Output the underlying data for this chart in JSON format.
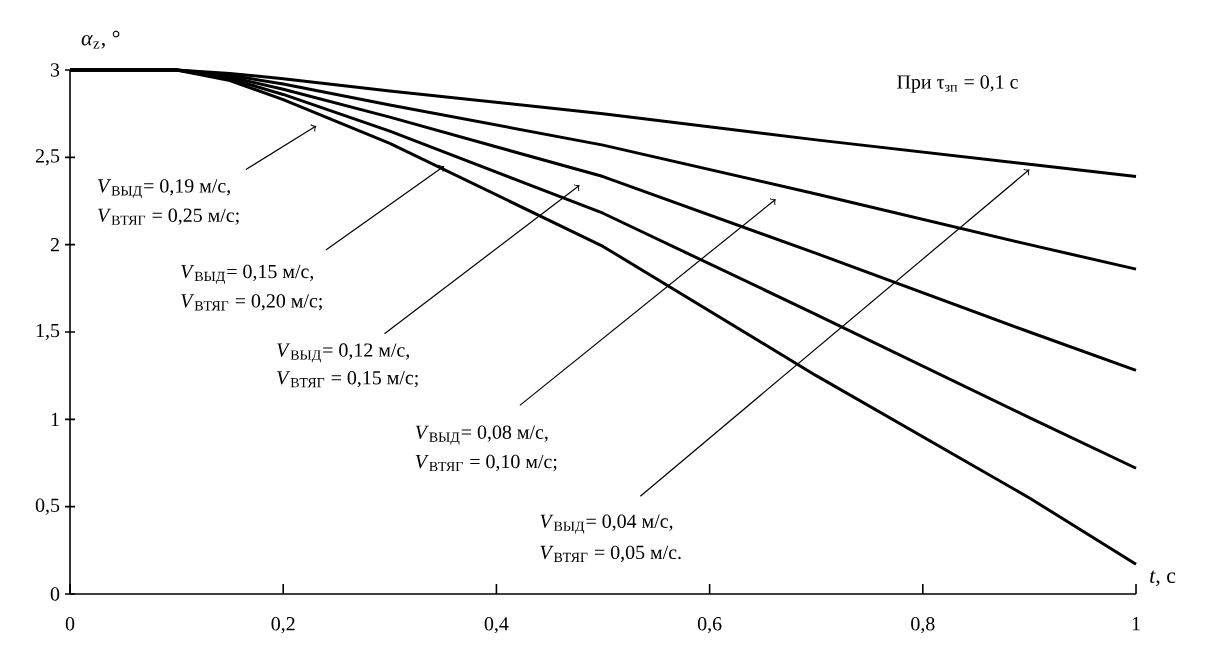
{
  "chart_data": {
    "type": "line",
    "xlabel": "*t*, с",
    "ylabel": "*α*$_{z}$, °",
    "x": [
      0,
      0.1,
      0.15,
      0.2,
      0.3,
      0.5,
      0.7,
      0.9,
      1
    ],
    "series": [
      {
        "color": "#000000",
        "values": [
          3,
          3,
          2.98,
          2.95,
          2.88,
          2.75,
          2.6,
          2.46,
          2.39
        ]
      },
      {
        "color": "#000000",
        "values": [
          3,
          3,
          2.97,
          2.92,
          2.8,
          2.57,
          2.29,
          2.0,
          1.86
        ]
      },
      {
        "color": "#000000",
        "values": [
          3,
          3,
          2.96,
          2.89,
          2.73,
          2.39,
          1.95,
          1.5,
          1.28
        ]
      },
      {
        "color": "#000000",
        "values": [
          3,
          3,
          2.95,
          2.86,
          2.65,
          2.18,
          1.6,
          1.01,
          0.72
        ]
      },
      {
        "color": "#000000",
        "values": [
          3,
          3,
          2.94,
          2.83,
          2.58,
          1.99,
          1.25,
          0.55,
          0.17
        ]
      }
    ],
    "xlim": [
      0,
      1
    ],
    "ylim": [
      0,
      3
    ],
    "xticks": [
      0,
      {
        "value": 0.2,
        "label": "0,2"
      },
      {
        "value": 0.4,
        "label": "0,4"
      },
      {
        "value": 0.6,
        "label": "0,6"
      },
      {
        "value": 0.8,
        "label": "0,8"
      },
      1
    ],
    "yticks": [
      0,
      {
        "value": 0.5,
        "label": "0,5"
      },
      1,
      {
        "value": 1.5,
        "label": "1,5"
      },
      2,
      {
        "value": 2.5,
        "label": "2,5"
      },
      3
    ],
    "grid": false,
    "marker": "none",
    "line_style": "solid",
    "annotations": [
      {
        "text": "*V*$_{ВЫД}$= 0,19 м/с,",
        "x": 0.231,
        "y": 2.68
      },
      "*V*$_{ВТЯГ}$ = 0,25 м/с;",
      {
        "text": "*V*$_{ВЫД}$= 0,15 м/с,",
        "x": 0.351,
        "y": 2.45
      },
      "*V*$_{ВТЯГ}$ = 0,20 м/с;",
      {
        "text": "*V*$_{ВЫД}$= 0,12 м/с,",
        "x": 0.478,
        "y": 2.34
      },
      "*V*$_{ВТЯГ}$ = 0,15 м/с;",
      {
        "text": "*V*$_{ВЫД}$= 0,08 м/с,",
        "x": 0.662,
        "y": 2.26
      },
      "*V*$_{ВТЯГ}$ = 0,10 м/с;",
      {
        "text": "*V*$_{ВЫД}$= 0,04 м/с,",
        "x": 0.9,
        "y": 2.43
      },
      "*V*$_{ВТЯГ}$ = 0,05 м/с.",
      "При τ$_{зп}$ = 0,1 с"
    ]
  }
}
